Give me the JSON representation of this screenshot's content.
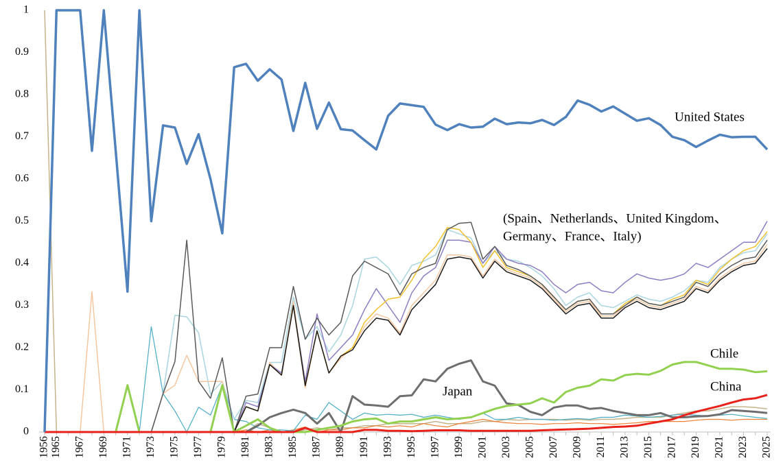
{
  "chart_data": {
    "type": "line",
    "categories": [
      "1956",
      "1965",
      null,
      "1967",
      null,
      "1969",
      null,
      "1971",
      null,
      "1973",
      null,
      "1975",
      null,
      "1977",
      null,
      "1979",
      null,
      "1981",
      null,
      "1983",
      null,
      "1985",
      null,
      "1987",
      null,
      "1989",
      null,
      "1991",
      null,
      "1993",
      null,
      "1995",
      null,
      "1997",
      null,
      "1999",
      null,
      "2001",
      null,
      "2003",
      null,
      "2005",
      null,
      "2007",
      null,
      "2009",
      null,
      "2011",
      null,
      "2013",
      null,
      "2015",
      null,
      "2017",
      null,
      "2019",
      null,
      "2021",
      null,
      "2023",
      null,
      "2025"
    ],
    "ylim": [
      0,
      1
    ],
    "yticks": [
      0,
      0.1,
      0.2,
      0.3,
      0.4,
      0.5,
      0.6,
      0.7,
      0.8,
      0.9,
      1
    ],
    "grid": false,
    "annotations": [
      "(Spain、Netherlands、United Kingdom、",
      "Germany、France、Italy)"
    ],
    "series": [
      {
        "color": "#c4b48a",
        "width": 1.5,
        "values": [
          1,
          0,
          0,
          0,
          0,
          0,
          0,
          0,
          0,
          0,
          0,
          0,
          0,
          0,
          0,
          0,
          0,
          0,
          0.02,
          0.01,
          0,
          0,
          0.005,
          0.01,
          0.005,
          0.01,
          0.01,
          0.015,
          0.015,
          0.02,
          0.02,
          0.02,
          0.02,
          0.025,
          0.02,
          0.02,
          0.02,
          0.025,
          0.025,
          0.03,
          0.028,
          0.03,
          0.03,
          0.03,
          0.028,
          0.03,
          0.028,
          0.03,
          0.03,
          0.032,
          0.035,
          0.035,
          0.035,
          0.04,
          0.045,
          0.05,
          0.05,
          0.055,
          0.06,
          0.06,
          0.058,
          0.055
        ]
      },
      {
        "color": "#ed7d31",
        "width": 1.2,
        "values": [
          0,
          0,
          0,
          0,
          0,
          0,
          0,
          0,
          0,
          0,
          0,
          0,
          0,
          0,
          0,
          0,
          0,
          0.005,
          0,
          0.005,
          0,
          0.005,
          0.012,
          0,
          0.005,
          0.005,
          0.01,
          0.01,
          0.015,
          0.012,
          0.015,
          0.012,
          0.02,
          0.015,
          0.012,
          0.02,
          0.025,
          0.03,
          0.025,
          0.022,
          0.02,
          0.02,
          0.018,
          0.02,
          0.02,
          0.022,
          0.02,
          0.02,
          0.018,
          0.02,
          0.022,
          0.025,
          0.025,
          0.025,
          0.025,
          0.028,
          0.03,
          0.03,
          0.028,
          0.03,
          0.03,
          0.03
        ]
      },
      {
        "color": "#4bacc6",
        "width": 1.2,
        "values": [
          0,
          0,
          0,
          0,
          0,
          0,
          0,
          0,
          0,
          0.25,
          0.091,
          0.05,
          0,
          0.059,
          0.04,
          0.111,
          0.03,
          0.025,
          0.01,
          0.005,
          0.005,
          0.003,
          0.04,
          0.03,
          0.07,
          0.05,
          0.03,
          0.045,
          0.04,
          0.042,
          0.04,
          0.042,
          0.035,
          0.04,
          0.035,
          0.03,
          0.035,
          0.045,
          0.03,
          0.03,
          0.035,
          0.03,
          0.03,
          0.028,
          0.03,
          0.032,
          0.03,
          0.035,
          0.035,
          0.04,
          0.038,
          0.035,
          0.037,
          0.04,
          0.042,
          0.04,
          0.038,
          0.04,
          0.042,
          0.038,
          0.035,
          0.032
        ]
      },
      {
        "color": "#a9d5e0",
        "width": 1.5,
        "values": [
          0,
          0,
          0,
          0,
          0,
          0,
          0,
          0,
          0,
          0,
          0.091,
          0.277,
          0.273,
          0.235,
          0.09,
          0.12,
          0.03,
          0.075,
          0.07,
          0.165,
          0.165,
          0.32,
          0.22,
          0.25,
          0.19,
          0.23,
          0.3,
          0.41,
          0.415,
          0.39,
          0.35,
          0.395,
          0.405,
          0.42,
          0.48,
          0.47,
          0.46,
          0.4,
          0.43,
          0.41,
          0.405,
          0.39,
          0.37,
          0.34,
          0.3,
          0.32,
          0.33,
          0.3,
          0.295,
          0.31,
          0.325,
          0.315,
          0.31,
          0.32,
          0.335,
          0.36,
          0.355,
          0.39,
          0.41,
          0.425,
          0.43,
          0.47
        ]
      },
      {
        "color": "#f4c7a1",
        "width": 1.5,
        "values": [
          0,
          0,
          0,
          0,
          0.333,
          0,
          0,
          0,
          0,
          0,
          0.091,
          0.111,
          0.182,
          0.12,
          0.12,
          0.12,
          0,
          0.06,
          0.05,
          0.165,
          0.135,
          0.31,
          0.105,
          0.24,
          0.14,
          0.175,
          0.2,
          0.25,
          0.28,
          0.27,
          0.235,
          0.3,
          0.33,
          0.36,
          0.42,
          0.42,
          0.415,
          0.37,
          0.41,
          0.385,
          0.375,
          0.365,
          0.345,
          0.315,
          0.285,
          0.305,
          0.31,
          0.275,
          0.275,
          0.3,
          0.315,
          0.3,
          0.295,
          0.305,
          0.315,
          0.345,
          0.335,
          0.365,
          0.385,
          0.4,
          0.405,
          0.445
        ]
      },
      {
        "color": "#8e7cc3",
        "width": 1.5,
        "values": [
          0,
          0,
          0,
          0,
          0,
          0,
          0,
          0,
          0,
          0,
          0,
          0,
          0,
          0,
          0,
          0,
          0,
          0.07,
          0.06,
          0.16,
          0.14,
          0.3,
          0.12,
          0.28,
          0.17,
          0.2,
          0.23,
          0.29,
          0.34,
          0.3,
          0.26,
          0.33,
          0.37,
          0.39,
          0.455,
          0.455,
          0.45,
          0.4,
          0.44,
          0.41,
          0.4,
          0.395,
          0.38,
          0.35,
          0.33,
          0.35,
          0.355,
          0.335,
          0.33,
          0.355,
          0.375,
          0.365,
          0.36,
          0.365,
          0.375,
          0.4,
          0.39,
          0.41,
          0.43,
          0.45,
          0.45,
          0.5
        ]
      },
      {
        "color": "#f2c12e",
        "width": 1.5,
        "values": [
          0,
          0,
          0,
          0,
          0,
          0,
          0,
          0,
          0,
          0,
          0,
          0,
          0,
          0,
          0,
          0,
          0,
          0.06,
          0.05,
          0.16,
          0.135,
          0.3,
          0.11,
          0.24,
          0.14,
          0.18,
          0.2,
          0.26,
          0.29,
          0.315,
          0.32,
          0.36,
          0.41,
          0.44,
          0.485,
          0.48,
          0.45,
          0.39,
          0.43,
          0.39,
          0.38,
          0.37,
          0.35,
          0.32,
          0.29,
          0.31,
          0.315,
          0.28,
          0.28,
          0.305,
          0.32,
          0.305,
          0.3,
          0.315,
          0.325,
          0.36,
          0.35,
          0.385,
          0.41,
          0.43,
          0.44,
          0.475
        ]
      },
      {
        "color": "#595959",
        "width": 1.5,
        "values": [
          0,
          0,
          0,
          0,
          0,
          0,
          0,
          0,
          0,
          0,
          0.091,
          0.167,
          0.455,
          0.12,
          0.08,
          0.176,
          0,
          0.085,
          0.09,
          0.2,
          0.2,
          0.345,
          0.22,
          0.27,
          0.23,
          0.26,
          0.37,
          0.405,
          0.39,
          0.375,
          0.325,
          0.375,
          0.39,
          0.4,
          0.48,
          0.495,
          0.497,
          0.41,
          0.44,
          0.395,
          0.385,
          0.37,
          0.35,
          0.32,
          0.29,
          0.31,
          0.315,
          0.28,
          0.28,
          0.3,
          0.32,
          0.305,
          0.3,
          0.31,
          0.32,
          0.355,
          0.345,
          0.375,
          0.395,
          0.41,
          0.415,
          0.455
        ]
      },
      {
        "color": "#1a1a1a",
        "width": 1.5,
        "values": [
          0,
          0,
          0,
          0,
          0,
          0,
          0,
          0,
          0,
          0,
          0,
          0,
          0,
          0,
          0,
          0,
          0,
          0.06,
          0.05,
          0.16,
          0.135,
          0.3,
          0.11,
          0.24,
          0.14,
          0.18,
          0.195,
          0.24,
          0.27,
          0.265,
          0.23,
          0.29,
          0.32,
          0.35,
          0.41,
          0.415,
          0.41,
          0.365,
          0.405,
          0.38,
          0.37,
          0.36,
          0.34,
          0.31,
          0.28,
          0.3,
          0.305,
          0.27,
          0.27,
          0.295,
          0.31,
          0.295,
          0.29,
          0.3,
          0.31,
          0.34,
          0.33,
          0.36,
          0.38,
          0.395,
          0.4,
          0.435
        ]
      },
      {
        "name": "Japan",
        "color": "#6e6e6e",
        "width": 3,
        "values": [
          0,
          0,
          0,
          0,
          0,
          0,
          0,
          0,
          0,
          0,
          0,
          0,
          0,
          0,
          0,
          0,
          0,
          0,
          0.015,
          0.035,
          0.045,
          0.053,
          0.045,
          0.02,
          0.045,
          0,
          0.085,
          0.065,
          0.063,
          0.06,
          0.085,
          0.087,
          0.125,
          0.12,
          0.15,
          0.162,
          0.17,
          0.12,
          0.11,
          0.068,
          0.064,
          0.048,
          0.04,
          0.058,
          0.063,
          0.063,
          0.055,
          0.057,
          0.05,
          0.045,
          0.04,
          0.04,
          0.045,
          0.035,
          0.035,
          0.037,
          0.038,
          0.042,
          0.052,
          0.05,
          0.048,
          0.045
        ]
      },
      {
        "name": "Chile",
        "color": "#92d050",
        "width": 3,
        "values": [
          0,
          0,
          0,
          0,
          0,
          0,
          0,
          0.111,
          0,
          0,
          0,
          0,
          0,
          0,
          0,
          0.111,
          0,
          0.015,
          0.03,
          0.01,
          0,
          0,
          0,
          0.005,
          0.01,
          0.015,
          0.025,
          0.03,
          0.032,
          0.02,
          0.025,
          0.025,
          0.03,
          0.035,
          0.03,
          0.032,
          0.035,
          0.045,
          0.055,
          0.062,
          0.065,
          0.068,
          0.08,
          0.07,
          0.095,
          0.105,
          0.11,
          0.125,
          0.122,
          0.135,
          0.138,
          0.136,
          0.145,
          0.16,
          0.166,
          0.166,
          0.158,
          0.15,
          0.15,
          0.148,
          0.142,
          0.144
        ]
      },
      {
        "name": "China",
        "color": "#e8221b",
        "width": 3,
        "values": [
          0,
          0,
          0,
          0,
          0,
          0,
          0,
          0,
          0,
          0,
          0,
          0,
          0,
          0,
          0,
          0,
          0,
          0,
          0,
          0,
          0,
          0,
          0.01,
          0,
          0,
          0,
          0,
          0.005,
          0.005,
          0.003,
          0.003,
          0.002,
          0.003,
          0.004,
          0.004,
          0.004,
          0.003,
          0.003,
          0.003,
          0.003,
          0.003,
          0.003,
          0.004,
          0.005,
          0.006,
          0.007,
          0.008,
          0.01,
          0.012,
          0.013,
          0.015,
          0.02,
          0.025,
          0.03,
          0.04,
          0.048,
          0.055,
          0.062,
          0.07,
          0.077,
          0.08,
          0.088
        ]
      },
      {
        "name": "United States",
        "color": "#4f81bd",
        "width": 3.5,
        "values": [
          0,
          1,
          1,
          1,
          0.667,
          1,
          0.667,
          0.333,
          1,
          0.5,
          0.727,
          0.722,
          0.636,
          0.706,
          0.6,
          0.471,
          0.865,
          0.873,
          0.833,
          0.86,
          0.836,
          0.714,
          0.828,
          0.719,
          0.781,
          0.718,
          0.715,
          0.692,
          0.67,
          0.75,
          0.779,
          0.775,
          0.771,
          0.729,
          0.716,
          0.73,
          0.722,
          0.724,
          0.743,
          0.73,
          0.734,
          0.732,
          0.74,
          0.728,
          0.747,
          0.786,
          0.776,
          0.76,
          0.772,
          0.755,
          0.738,
          0.744,
          0.728,
          0.7,
          0.692,
          0.676,
          0.691,
          0.705,
          0.699,
          0.7,
          0.7,
          0.67
        ]
      }
    ]
  }
}
